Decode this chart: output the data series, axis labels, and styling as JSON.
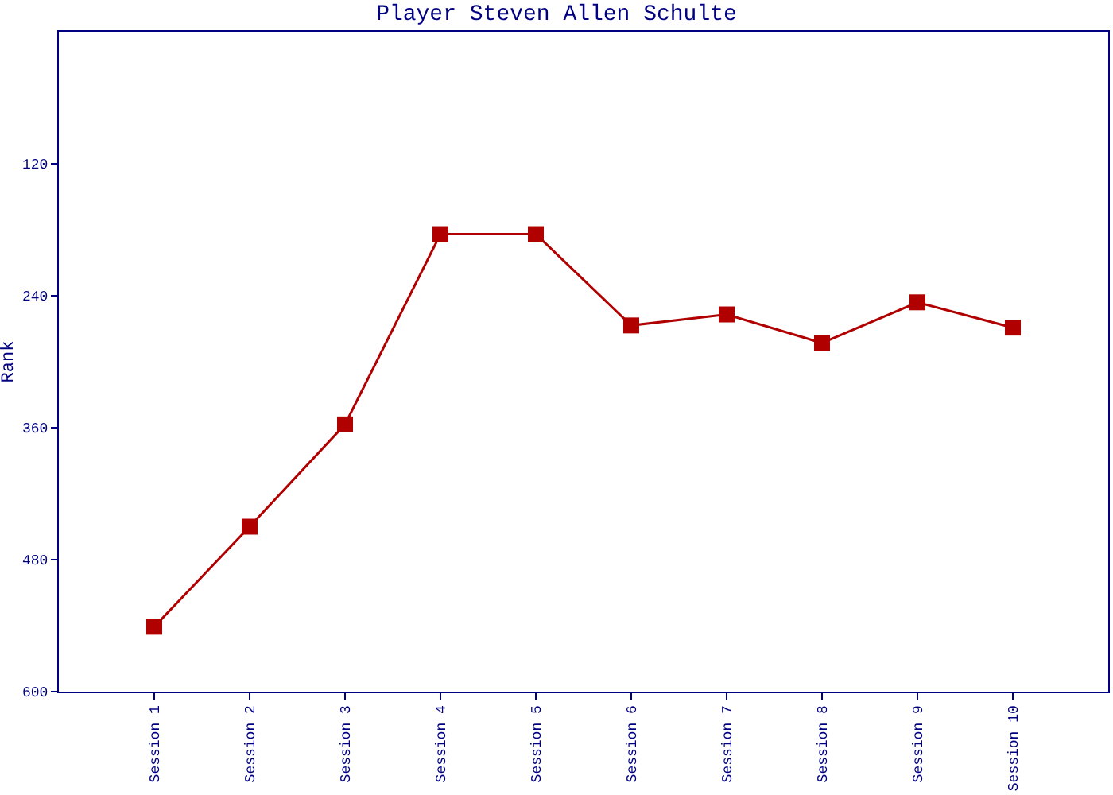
{
  "chart_data": {
    "type": "line",
    "title": "Player Steven Allen Schulte",
    "ylabel": "Rank",
    "categories": [
      "Session 1",
      "Session 2",
      "Session 3",
      "Session 4",
      "Session 5",
      "Session 6",
      "Session 7",
      "Session 8",
      "Session 9",
      "Session 10"
    ],
    "series": [
      {
        "color": "#b00000",
        "values": [
          541,
          450,
          357,
          184,
          184,
          267,
          257,
          283,
          246,
          269
        ]
      }
    ],
    "ylim": [
      600,
      0
    ],
    "yticks": [
      120,
      240,
      360,
      480,
      600
    ],
    "marker": "square",
    "line_style": "solid"
  }
}
